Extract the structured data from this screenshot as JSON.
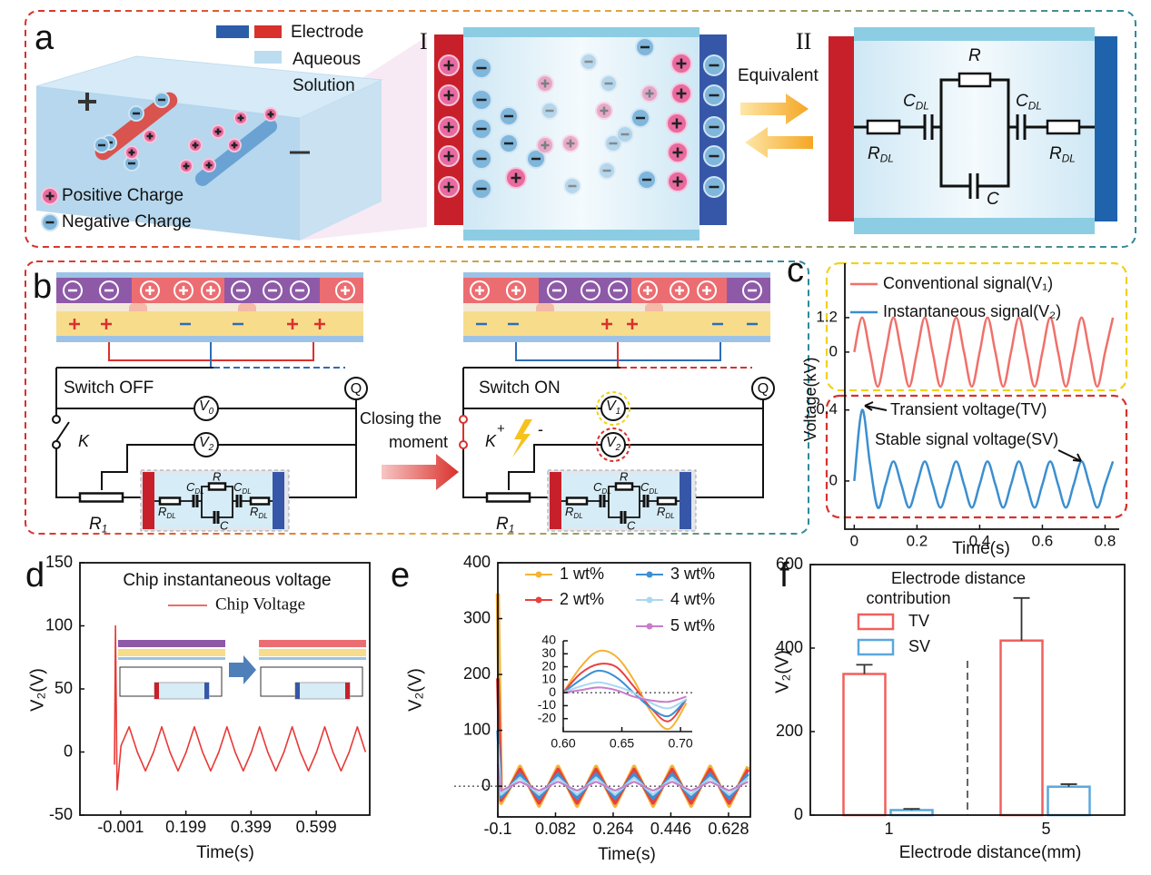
{
  "panels": {
    "a": {
      "label": "a",
      "legend": {
        "electrode": "Electrode",
        "solution": [
          "Aqueous",
          "Solution"
        ],
        "positive": "Positive Charge",
        "negative": "Negative Charge"
      },
      "stage_1": "I",
      "stage_2": "II",
      "equivalent": "Equivalent",
      "circuit": {
        "r": "R",
        "c": "C",
        "c_dl": [
          "C",
          "DL"
        ],
        "r_dl": [
          "R",
          "DL"
        ]
      }
    },
    "b": {
      "label": "b",
      "switch_off": "Switch OFF",
      "switch_on": "Switch ON",
      "closing": [
        "Closing the",
        "moment"
      ],
      "q": "Q",
      "k": "K",
      "k_charge": [
        "+",
        "-"
      ],
      "v0": [
        "V",
        "0"
      ],
      "v1": [
        "V",
        "1"
      ],
      "v2": [
        "V",
        "2"
      ],
      "r1": [
        "R",
        "1"
      ],
      "cell": {
        "r": "R",
        "c": "C",
        "c_dl": [
          "C",
          "DL"
        ],
        "r_dl": [
          "R",
          "DL"
        ]
      }
    }
  },
  "chart_data": [
    {
      "type": "line",
      "label": "c",
      "xlabel": "Time(s)",
      "ylabel": "Voltage(kV)",
      "xlim": [
        -0.03,
        0.845
      ],
      "xticks": [
        0,
        0.2,
        0.4,
        0.6,
        0.8
      ],
      "x": [
        0,
        0.025,
        0.05,
        0.075,
        0.1,
        0.125,
        0.15,
        0.175,
        0.2,
        0.225,
        0.25,
        0.275,
        0.3,
        0.325,
        0.35,
        0.375,
        0.4,
        0.425,
        0.45,
        0.475,
        0.5,
        0.525,
        0.55,
        0.575,
        0.6,
        0.625,
        0.65,
        0.675,
        0.7,
        0.725,
        0.75,
        0.775,
        0.8,
        0.825
      ],
      "series": [
        {
          "name": "Conventional signal(V₁)",
          "color": "#f0706a",
          "ylim": [
            -1.33,
            3.03
          ],
          "yticks": [
            0,
            1.2
          ],
          "values": [
            0,
            1.2,
            0,
            -1.2,
            0,
            1.2,
            0,
            -1.2,
            0,
            1.2,
            0,
            -1.2,
            0,
            1.2,
            0,
            -1.2,
            0,
            1.2,
            0,
            -1.2,
            0,
            1.2,
            0,
            -1.2,
            0,
            1.2,
            0,
            -1.2,
            0,
            1.2,
            0,
            -1.2,
            0,
            1.2
          ]
        },
        {
          "name": "Instantaneous signal(V₂)",
          "color": "#3b8fd0",
          "ylim": [
            -0.205,
            0.47
          ],
          "yticks": [
            0,
            0.4
          ],
          "annotations": [
            "Transient voltage(TV)",
            "Stable signal voltage(SV)"
          ],
          "values": [
            0,
            0.4,
            0.1,
            -0.15,
            -0.02,
            0.11,
            -0.02,
            -0.15,
            -0.02,
            0.11,
            -0.02,
            -0.15,
            -0.02,
            0.11,
            -0.02,
            -0.15,
            -0.02,
            0.11,
            -0.02,
            -0.15,
            -0.02,
            0.11,
            -0.02,
            -0.15,
            -0.02,
            0.11,
            -0.02,
            -0.15,
            -0.02,
            0.11,
            -0.02,
            -0.15,
            -0.02,
            0.11
          ]
        }
      ]
    },
    {
      "type": "line",
      "label": "d",
      "title": "Chip instantaneous voltage",
      "xlabel": "Time(s)",
      "ylabel": "V₂(V)",
      "xlim": [
        -0.126,
        0.763
      ],
      "xticks": [
        -0.001,
        0.199,
        0.399,
        0.599
      ],
      "ylim": [
        -50,
        150
      ],
      "yticks": [
        -50,
        0,
        50,
        100,
        150
      ],
      "x": [
        -0.02,
        -0.017,
        -0.012,
        0,
        0.025,
        0.05,
        0.075,
        0.1,
        0.125,
        0.15,
        0.175,
        0.2,
        0.225,
        0.25,
        0.275,
        0.3,
        0.325,
        0.35,
        0.375,
        0.4,
        0.425,
        0.45,
        0.475,
        0.5,
        0.525,
        0.55,
        0.575,
        0.6,
        0.625,
        0.65,
        0.675,
        0.7,
        0.725,
        0.75
      ],
      "series": [
        {
          "name": "Chip Voltage",
          "color": "#e83a36",
          "values": [
            -10,
            100,
            -30,
            5,
            20,
            0,
            -15,
            0,
            20,
            0,
            -15,
            0,
            20,
            0,
            -15,
            0,
            20,
            0,
            -15,
            0,
            20,
            0,
            -15,
            0,
            20,
            0,
            -15,
            0,
            20,
            0,
            -15,
            0,
            20,
            0
          ]
        }
      ]
    },
    {
      "type": "line",
      "label": "e",
      "xlabel": "Time(s)",
      "ylabel": "V₂(V)",
      "xlim": [
        -0.1,
        0.697
      ],
      "xticks": [
        -0.1,
        0.082,
        0.264,
        0.446,
        0.628
      ],
      "ylim": [
        -55,
        400
      ],
      "yticks": [
        0,
        100,
        200,
        300,
        400
      ],
      "x": [
        -0.1,
        -0.09,
        -0.06,
        -0.03,
        0,
        0.03,
        0.06,
        0.09,
        0.12,
        0.15,
        0.18,
        0.21,
        0.24,
        0.27,
        0.3,
        0.33,
        0.36,
        0.39,
        0.42,
        0.45,
        0.48,
        0.51,
        0.54,
        0.57,
        0.6,
        0.63,
        0.66,
        0.69
      ],
      "inset": {
        "xlim": [
          0.6,
          0.71
        ],
        "ylim": [
          -30,
          40
        ],
        "xticks": [
          {
            "value": 0.6,
            "label": "0.60"
          },
          {
            "value": 0.65,
            "label": "0.65"
          },
          {
            "value": 0.7,
            "label": "0.70"
          }
        ],
        "yticks": [
          -20,
          -10,
          0,
          10,
          20,
          30,
          40
        ],
        "x": [
          0.6,
          0.615,
          0.63,
          0.645,
          0.66,
          0.675,
          0.69,
          0.705
        ]
      },
      "series": [
        {
          "name": "1 wt%",
          "color": "#f5b335",
          "values": [
            345,
            -30,
            0,
            35,
            0,
            -35,
            0,
            35,
            0,
            -35,
            0,
            35,
            0,
            -35,
            0,
            35,
            0,
            -35,
            0,
            35,
            0,
            -35,
            0,
            35,
            0,
            -35,
            0,
            35
          ],
          "inset_values": [
            0,
            20,
            32,
            28,
            10,
            -15,
            -28,
            -8
          ]
        },
        {
          "name": "2 wt%",
          "color": "#e8403f",
          "values": [
            193,
            -25,
            0,
            30,
            0,
            -30,
            0,
            30,
            0,
            -30,
            0,
            30,
            0,
            -30,
            0,
            30,
            0,
            -30,
            0,
            30,
            0,
            -30,
            0,
            30,
            0,
            -30,
            0,
            30
          ],
          "inset_values": [
            0,
            15,
            22,
            20,
            5,
            -12,
            -22,
            -5
          ]
        },
        {
          "name": "3 wt%",
          "color": "#3c8fd4",
          "values": [
            100,
            -20,
            0,
            22,
            0,
            -22,
            0,
            22,
            0,
            -22,
            0,
            22,
            0,
            -22,
            0,
            22,
            0,
            -22,
            0,
            22,
            0,
            -22,
            0,
            22,
            0,
            -22,
            0,
            22
          ],
          "inset_values": [
            0,
            10,
            17,
            12,
            0,
            -12,
            -18,
            -5
          ]
        },
        {
          "name": "4 wt%",
          "color": "#a9d8f0",
          "values": [
            75,
            -15,
            0,
            15,
            0,
            -15,
            0,
            15,
            0,
            -15,
            0,
            15,
            0,
            -15,
            0,
            15,
            0,
            -15,
            0,
            15,
            0,
            -15,
            0,
            15,
            0,
            -15,
            0,
            15
          ],
          "inset_values": [
            0,
            5,
            8,
            5,
            0,
            -8,
            -12,
            -5
          ]
        },
        {
          "name": "5 wt%",
          "color": "#c77dc9",
          "values": [
            40,
            -8,
            0,
            8,
            0,
            -8,
            0,
            8,
            0,
            -8,
            0,
            8,
            0,
            -8,
            0,
            8,
            0,
            -8,
            0,
            8,
            0,
            -8,
            0,
            8,
            0,
            -8,
            0,
            8
          ],
          "inset_values": [
            0,
            2,
            4,
            2,
            -3,
            -6,
            -7,
            -3
          ]
        }
      ]
    },
    {
      "type": "bar",
      "label": "f",
      "title": [
        "Electrode distance",
        "contribution"
      ],
      "xlabel": "Electrode distance(mm)",
      "ylabel": "V₂(V)",
      "categories": [
        "1",
        "5"
      ],
      "ylim": [
        0,
        600
      ],
      "yticks": [
        0,
        200,
        400,
        600
      ],
      "series": [
        {
          "name": "TV",
          "color": "#f0605c",
          "values": [
            338,
            418
          ],
          "errors": [
            22,
            102
          ]
        },
        {
          "name": "SV",
          "color": "#5aa8dc",
          "values": [
            12,
            68
          ],
          "errors": [
            3,
            6
          ]
        }
      ]
    }
  ]
}
